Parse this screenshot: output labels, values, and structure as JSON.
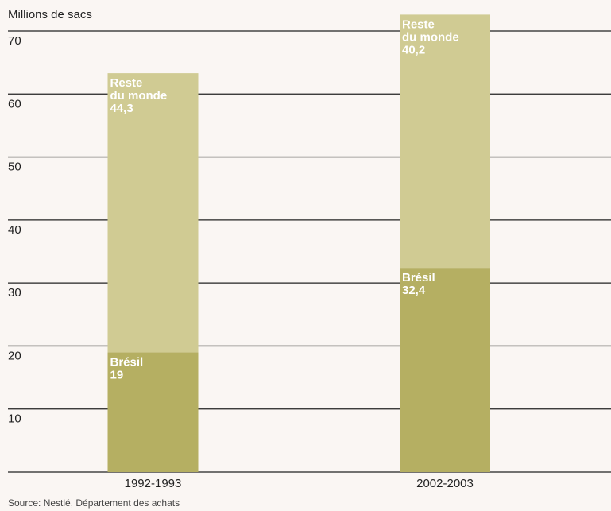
{
  "chart_data": {
    "type": "bar",
    "stacked": true,
    "ylabel": "Millions de sacs",
    "ylim": [
      0,
      70
    ],
    "yticks": [
      10,
      20,
      30,
      40,
      50,
      60,
      70
    ],
    "grid": true,
    "categories": [
      "1992-1993",
      "2002-2003"
    ],
    "series": [
      {
        "name": "Brésil",
        "values": [
          19,
          32.4
        ],
        "color": "#b5af62",
        "labels": [
          [
            "Brésil",
            "19"
          ],
          [
            "Brésil",
            "32,4"
          ]
        ]
      },
      {
        "name": "Reste du monde",
        "values": [
          44.3,
          40.2
        ],
        "color": "#d0cb93",
        "labels": [
          [
            "Reste",
            "du monde",
            "44,3"
          ],
          [
            "Reste",
            "du monde",
            "40,2"
          ]
        ]
      }
    ]
  },
  "source": "Source: Nestlé, Département des achats"
}
